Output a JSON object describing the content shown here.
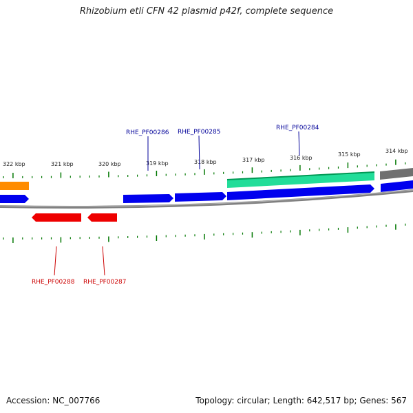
{
  "title": "Rhizobium etli CFN 42 plasmid p42f, complete sequence",
  "footer": {
    "accession": "Accession: NC_007766",
    "summary": "Topology: circular; Length: 642,517 bp; Genes: 567"
  },
  "colors": {
    "forward_gene": "#0000ee",
    "reverse_gene": "#ee0000",
    "cds_green": "#22dd99",
    "orange_feature": "#ff8c00",
    "gray_feature": "#707070",
    "tick": "#007700",
    "backbone": "#808080",
    "forward_label": "#000099",
    "reverse_label": "#cc0000"
  },
  "kbp_labels": [
    "322 kbp",
    "321 kbp",
    "320 kbp",
    "319 kbp",
    "318 kbp",
    "317 kbp",
    "316 kbp",
    "315 kbp",
    "314 kbp"
  ],
  "gene_labels": {
    "forward": [
      "RHE_PF00286",
      "RHE_PF00285",
      "RHE_PF00284"
    ],
    "reverse": [
      "RHE_PF00288",
      "RHE_PF00287"
    ]
  }
}
